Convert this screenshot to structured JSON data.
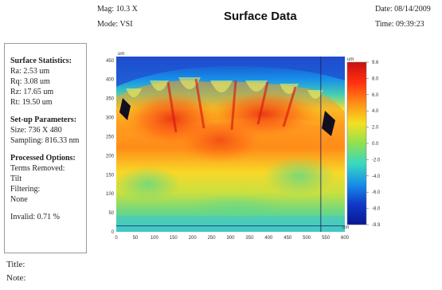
{
  "header": {
    "mag_label": "Mag:",
    "mag_value": "10.3 X",
    "mode_label": "Mode:",
    "mode_value": "VSI",
    "title": "Surface Data",
    "date_label": "Date:",
    "date_value": "08/14/2009",
    "time_label": "Time:",
    "time_value": "09:39:23"
  },
  "stats_panel": {
    "surface_title": "Surface Statistics:",
    "stats": [
      {
        "label": "Ra:",
        "value": "2.53 um"
      },
      {
        "label": "Rq:",
        "value": "3.08 um"
      },
      {
        "label": "Rz:",
        "value": "17.65 um"
      },
      {
        "label": "Rt:",
        "value": "19.50 um"
      }
    ],
    "setup_title": "Set-up Parameters:",
    "size_label": "Size:",
    "size_value": "736 X 480",
    "sampling_label": "Sampling:",
    "sampling_value": "816.33 nm",
    "processed_title": "Processed Options:",
    "terms_removed_label": "Terms Removed:",
    "terms_removed_value": "Tilt",
    "filtering_label": "Filtering:",
    "filtering_value": "None",
    "invalid_label": "Invalid:",
    "invalid_value": "0.71 %"
  },
  "footer": {
    "title_label": "Title:",
    "note_label": "Note:"
  },
  "chart_data": {
    "type": "heatmap",
    "x_unit": "um",
    "y_unit": "um",
    "xlim": [
      0,
      600
    ],
    "ylim": [
      0,
      460
    ],
    "x_ticks": [
      0,
      50,
      100,
      150,
      200,
      250,
      300,
      350,
      400,
      450,
      500,
      550,
      600
    ],
    "y_ticks": [
      0,
      50,
      100,
      150,
      200,
      250,
      300,
      350,
      400,
      450
    ],
    "cursor_x": 537,
    "cursor_y": 16,
    "colorbar": {
      "unit": "um",
      "ticks": [
        "9.6",
        "8.0",
        "6.0",
        "4.0",
        "2.0",
        "0.0",
        "-2.0",
        "-4.0",
        "-6.0",
        "-8.0",
        "-9.9"
      ],
      "range": [
        -9.9,
        9.6
      ],
      "colors": [
        "#c81010",
        "#ff3010",
        "#ff8c18",
        "#f5e020",
        "#90e050",
        "#38d8c0",
        "#1890e8",
        "#1038c8",
        "#081890"
      ]
    }
  }
}
